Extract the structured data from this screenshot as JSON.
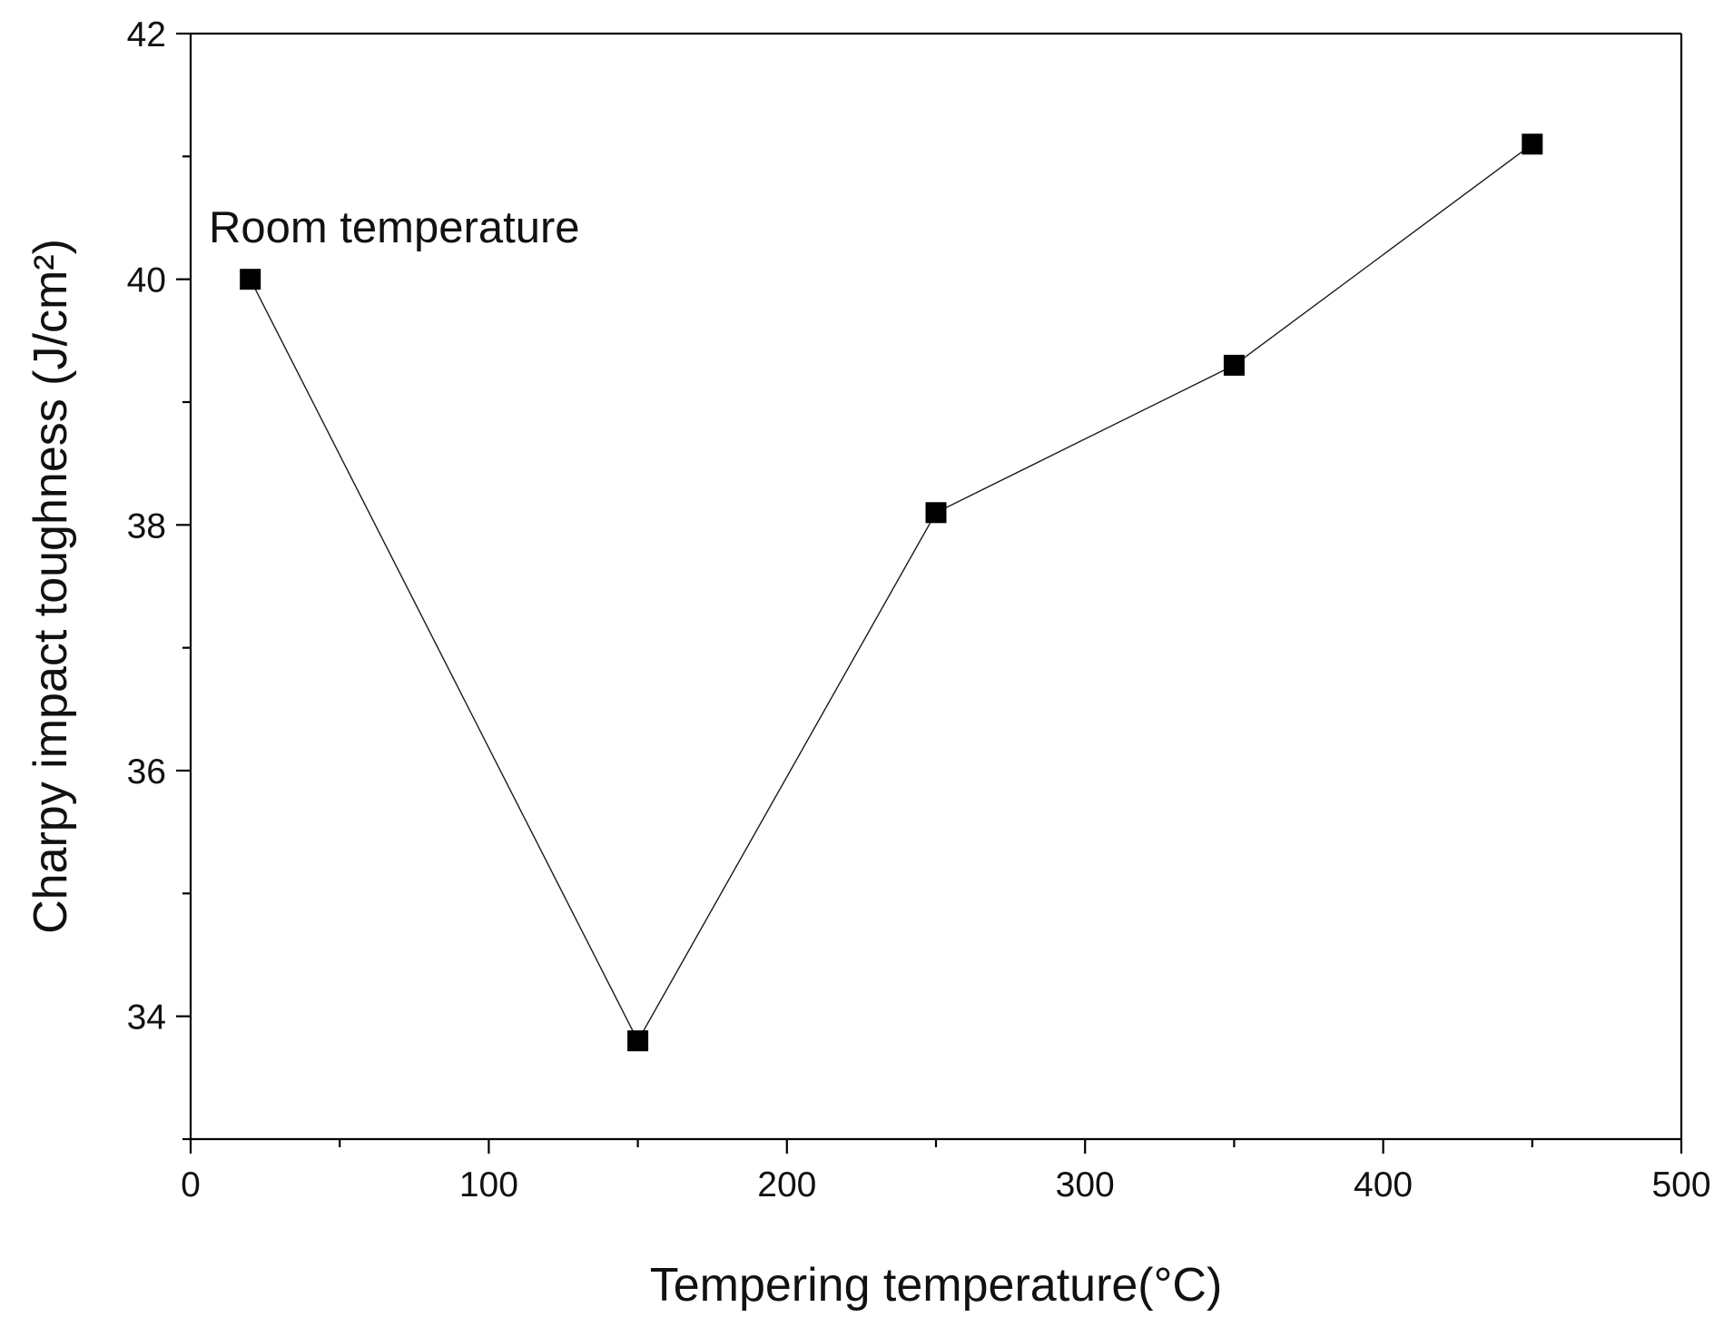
{
  "chart_data": {
    "type": "line",
    "title": "",
    "xlabel": "Tempering temperature(°C)",
    "ylabel": "Charpy impact toughness (J/cm²)",
    "xlim": [
      0,
      500
    ],
    "ylim": [
      33,
      42
    ],
    "x_ticks": [
      0,
      100,
      200,
      300,
      400,
      500
    ],
    "x_minor_ticks": [
      50,
      150,
      250,
      350,
      450
    ],
    "y_ticks": [
      34,
      36,
      38,
      40,
      42
    ],
    "y_minor_ticks": [
      33,
      35,
      37,
      39,
      41
    ],
    "grid": false,
    "legend": "none",
    "marker": "square",
    "series": [
      {
        "x": [
          20,
          150,
          250,
          350,
          450
        ],
        "values": [
          40.0,
          33.8,
          38.1,
          39.3,
          41.1
        ],
        "color": "#000000"
      }
    ],
    "annotations": [
      {
        "text": "Room temperature",
        "x": 20,
        "y": 40.0
      }
    ]
  }
}
